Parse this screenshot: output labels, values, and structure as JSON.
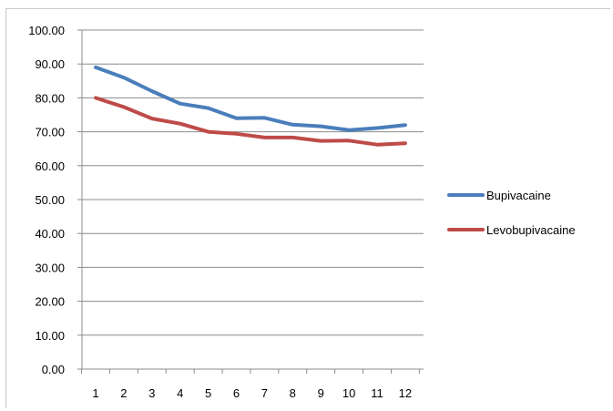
{
  "chart_data": {
    "type": "line",
    "title": "",
    "xlabel": "",
    "ylabel": "",
    "x": [
      1,
      2,
      3,
      4,
      5,
      6,
      7,
      8,
      9,
      10,
      11,
      12
    ],
    "x_tick_labels": [
      "1",
      "2",
      "3",
      "4",
      "5",
      "6",
      "7",
      "8",
      "9",
      "10",
      "11",
      "12"
    ],
    "ylim": [
      0,
      100
    ],
    "y_ticks": [
      0,
      10,
      20,
      30,
      40,
      50,
      60,
      70,
      80,
      90,
      100
    ],
    "y_tick_labels": [
      "0.00",
      "10.00",
      "20.00",
      "30.00",
      "40.00",
      "50.00",
      "60.00",
      "70.00",
      "80.00",
      "90.00",
      "100.00"
    ],
    "grid": "horizontal",
    "legend_position": "right",
    "series": [
      {
        "name": "Bupivacaine",
        "color": "#4a7ebb",
        "values": [
          89.0,
          86.0,
          82.0,
          78.3,
          77.0,
          74.0,
          74.1,
          72.1,
          71.6,
          70.5,
          71.1,
          72.0
        ]
      },
      {
        "name": "Levobupivacaine",
        "color": "#be4b48",
        "values": [
          80.0,
          77.3,
          73.9,
          72.4,
          70.0,
          69.4,
          68.3,
          68.3,
          67.3,
          67.4,
          66.2,
          66.6
        ]
      }
    ]
  }
}
